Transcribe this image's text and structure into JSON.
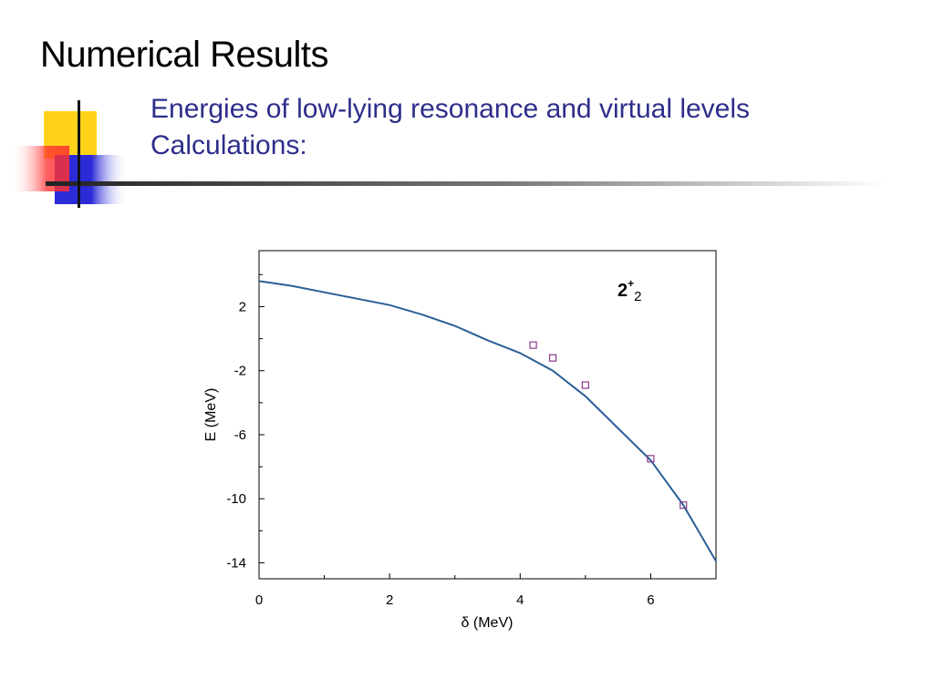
{
  "slide": {
    "title": "Numerical Results",
    "subtitle_line1": "Energies of low-lying resonance and virtual levels",
    "subtitle_line2": "Calculations:"
  },
  "colors": {
    "subtitle": "#2e2e8c",
    "curve": "#2a5f96",
    "marker": "#8a3a8a",
    "deco_yellow": "#ffd21a",
    "deco_blue": "#2b2bd8",
    "deco_red": "#ff3030"
  },
  "chart_data": {
    "type": "line",
    "xlabel": "δ  (MeV)",
    "ylabel": "E  (MeV)",
    "annotation": {
      "main": "2",
      "sup": "+",
      "sub": "2"
    },
    "xlim": [
      0,
      7
    ],
    "ylim": [
      -15,
      5.5
    ],
    "x_ticks": [
      0,
      2,
      4,
      6
    ],
    "y_ticks": [
      2,
      -2,
      -6,
      -10,
      -14
    ],
    "grid": false,
    "series": [
      {
        "style": "line",
        "x": [
          0,
          0.5,
          1,
          1.5,
          2,
          2.5,
          3,
          3.5,
          4,
          4.5,
          5,
          5.5,
          6,
          6.5,
          7
        ],
        "y": [
          3.6,
          3.3,
          2.9,
          2.5,
          2.1,
          1.5,
          0.8,
          -0.1,
          -0.9,
          -2.0,
          -3.6,
          -5.6,
          -7.6,
          -10.4,
          -13.9
        ]
      },
      {
        "style": "markers",
        "x": [
          4.2,
          4.5,
          5.0,
          6.0,
          6.5
        ],
        "y": [
          -0.4,
          -1.2,
          -2.9,
          -7.5,
          -10.4
        ]
      }
    ]
  }
}
